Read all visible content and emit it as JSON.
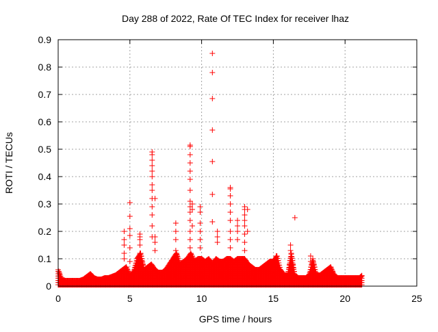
{
  "chart_data": {
    "type": "scatter",
    "title": "Day 288 of 2022, Rate Of TEC Index for receiver lhaz",
    "xlabel": "GPS time / hours",
    "ylabel": "ROTI / TECUs",
    "xlim": [
      0,
      25
    ],
    "ylim": [
      0,
      0.9
    ],
    "xticks": [
      "0",
      "5",
      "10",
      "15",
      "20",
      "25"
    ],
    "yticks": [
      "0",
      "0.1",
      "0.2",
      "0.3",
      "0.4",
      "0.5",
      "0.6",
      "0.7",
      "0.8",
      "0.9"
    ],
    "grid": true,
    "marker": "plus",
    "color": "#ff0000",
    "baseline_envelope": {
      "x": [
        0,
        0.25,
        0.5,
        0.75,
        1,
        1.25,
        1.5,
        1.75,
        2,
        2.25,
        2.5,
        2.75,
        3,
        3.25,
        3.5,
        3.75,
        4,
        4.25,
        4.5,
        4.75,
        5,
        5.25,
        5.5,
        5.75,
        6,
        6.25,
        6.5,
        6.75,
        7,
        7.25,
        7.5,
        7.75,
        8,
        8.25,
        8.5,
        8.75,
        9,
        9.25,
        9.5,
        9.75,
        10,
        10.25,
        10.5,
        10.75,
        11,
        11.25,
        11.5,
        11.75,
        12,
        12.25,
        12.5,
        12.75,
        13,
        13.25,
        13.5,
        13.75,
        14,
        14.25,
        14.5,
        14.75,
        15,
        15.25,
        15.5,
        15.75,
        16,
        16.25,
        16.5,
        16.75,
        17,
        17.25,
        17.5,
        17.75,
        18,
        18.25,
        18.5,
        18.75,
        19,
        19.25,
        19.5,
        19.75,
        20,
        20.25,
        20.5,
        20.75,
        21,
        21.2
      ],
      "y": [
        0.06,
        0.025,
        0.02,
        0.02,
        0.02,
        0.02,
        0.02,
        0.025,
        0.035,
        0.045,
        0.03,
        0.025,
        0.025,
        0.03,
        0.03,
        0.035,
        0.04,
        0.05,
        0.06,
        0.07,
        0.04,
        0.05,
        0.1,
        0.12,
        0.06,
        0.07,
        0.08,
        0.06,
        0.05,
        0.05,
        0.06,
        0.08,
        0.1,
        0.12,
        0.08,
        0.09,
        0.1,
        0.12,
        0.09,
        0.1,
        0.1,
        0.09,
        0.1,
        0.08,
        0.1,
        0.09,
        0.09,
        0.1,
        0.1,
        0.09,
        0.1,
        0.1,
        0.1,
        0.08,
        0.07,
        0.06,
        0.06,
        0.07,
        0.08,
        0.09,
        0.09,
        0.11,
        0.06,
        0.04,
        0.04,
        0.12,
        0.04,
        0.03,
        0.03,
        0.03,
        0.04,
        0.1,
        0.04,
        0.04,
        0.05,
        0.06,
        0.07,
        0.04,
        0.03,
        0.03,
        0.03,
        0.03,
        0.03,
        0.03,
        0.03,
        0.04
      ]
    },
    "spikes": [
      {
        "x": 4.6,
        "y": [
          0.2,
          0.17,
          0.15,
          0.12,
          0.1
        ]
      },
      {
        "x": 5.0,
        "y": [
          0.305,
          0.255,
          0.21,
          0.185,
          0.14,
          0.09
        ]
      },
      {
        "x": 5.7,
        "y": [
          0.19,
          0.18,
          0.17,
          0.15,
          0.12
        ]
      },
      {
        "x": 6.55,
        "y": [
          0.49,
          0.48,
          0.46,
          0.44,
          0.42,
          0.4,
          0.37,
          0.35,
          0.32,
          0.29,
          0.26,
          0.22,
          0.18
        ]
      },
      {
        "x": 6.75,
        "y": [
          0.32,
          0.18,
          0.16,
          0.13
        ]
      },
      {
        "x": 8.2,
        "y": [
          0.23,
          0.2,
          0.17,
          0.13
        ]
      },
      {
        "x": 9.2,
        "y": [
          0.515,
          0.51,
          0.48,
          0.45,
          0.42,
          0.39,
          0.35,
          0.31,
          0.29,
          0.27,
          0.24,
          0.2,
          0.17,
          0.14
        ]
      },
      {
        "x": 9.35,
        "y": [
          0.3,
          0.28,
          0.22
        ]
      },
      {
        "x": 9.9,
        "y": [
          0.29,
          0.27,
          0.23,
          0.2,
          0.17,
          0.14
        ]
      },
      {
        "x": 10.75,
        "y": [
          0.85,
          0.78,
          0.685,
          0.57,
          0.455,
          0.335,
          0.235
        ]
      },
      {
        "x": 11.1,
        "y": [
          0.2,
          0.18,
          0.16
        ]
      },
      {
        "x": 12.0,
        "y": [
          0.36,
          0.355,
          0.33,
          0.3,
          0.27,
          0.24,
          0.2,
          0.17,
          0.14
        ]
      },
      {
        "x": 12.5,
        "y": [
          0.24,
          0.22,
          0.2,
          0.17
        ]
      },
      {
        "x": 13.0,
        "y": [
          0.29,
          0.28,
          0.26,
          0.24,
          0.22,
          0.19,
          0.16,
          0.13
        ]
      },
      {
        "x": 13.2,
        "y": [
          0.28,
          0.2
        ]
      },
      {
        "x": 15.2,
        "y": [
          0.11
        ]
      },
      {
        "x": 16.2,
        "y": [
          0.15,
          0.13
        ]
      },
      {
        "x": 16.5,
        "y": [
          0.25
        ]
      },
      {
        "x": 17.6,
        "y": [
          0.11,
          0.09
        ]
      }
    ]
  }
}
